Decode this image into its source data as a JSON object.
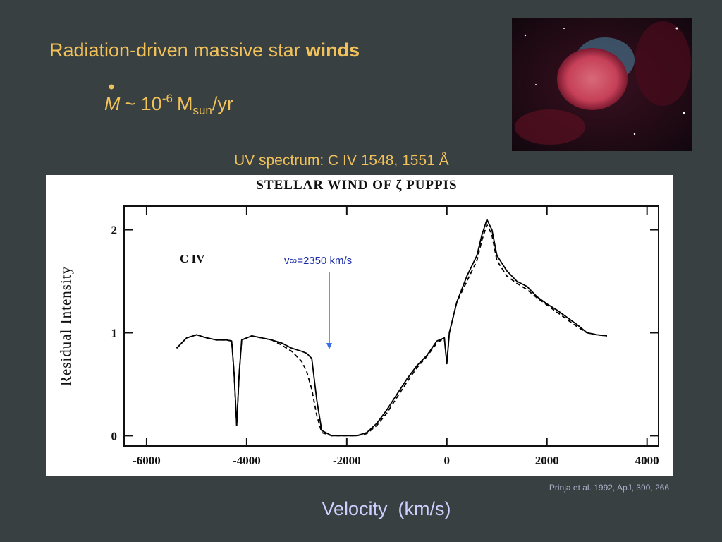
{
  "slide": {
    "title": "Radiation-driven massive star",
    "title_bold": "winds",
    "formula": {
      "symbol": "M",
      "approx": "~ 10",
      "exponent": "-6",
      "unit": "M",
      "unit_sub": "sun",
      "tail": "/yr"
    },
    "subtitle": "UV spectrum: C IV 1548, 1551 Å",
    "citation": "Prinja et al. 1992, ApJ, 390, 266",
    "caption": "Velocity  (km/s)"
  },
  "chart_data": {
    "type": "line",
    "title": "STELLAR WIND OF ζ PUPPIS",
    "y_label": "Residual Intensity",
    "annotations": [
      "C IV",
      "v∞=2350 km/s"
    ],
    "x": [
      -5400,
      -5200,
      -5000,
      -4800,
      -4600,
      -4400,
      -4300,
      -4250,
      -4200,
      -4150,
      -4100,
      -3900,
      -3700,
      -3500,
      -3300,
      -3100,
      -2900,
      -2800,
      -2700,
      -2600,
      -2500,
      -2300,
      -2000,
      -1800,
      -1600,
      -1400,
      -1200,
      -1000,
      -800,
      -600,
      -400,
      -200,
      -50,
      0,
      50,
      200,
      400,
      600,
      700,
      800,
      900,
      1000,
      1200,
      1400,
      1600,
      1800,
      2000,
      2200,
      2400,
      2600,
      2800,
      3000,
      3200
    ],
    "series": [
      {
        "name": "solid",
        "color": "#000000",
        "dash": false,
        "values": [
          0.85,
          0.95,
          0.98,
          0.95,
          0.93,
          0.93,
          0.92,
          0.6,
          0.1,
          0.6,
          0.93,
          0.97,
          0.95,
          0.93,
          0.9,
          0.85,
          0.82,
          0.8,
          0.75,
          0.35,
          0.05,
          0.0,
          0.0,
          0.0,
          0.03,
          0.12,
          0.25,
          0.4,
          0.55,
          0.68,
          0.78,
          0.92,
          0.95,
          0.7,
          1.0,
          1.3,
          1.55,
          1.75,
          1.95,
          2.1,
          2.0,
          1.75,
          1.6,
          1.5,
          1.45,
          1.35,
          1.28,
          1.22,
          1.15,
          1.08,
          1.0,
          0.98,
          0.97
        ]
      },
      {
        "name": "dashed",
        "color": "#000000",
        "dash": true,
        "values": [
          0.85,
          0.95,
          0.98,
          0.95,
          0.93,
          0.93,
          0.92,
          0.6,
          0.1,
          0.6,
          0.93,
          0.97,
          0.95,
          0.93,
          0.88,
          0.82,
          0.72,
          0.62,
          0.45,
          0.2,
          0.03,
          0.0,
          0.0,
          0.0,
          0.02,
          0.1,
          0.22,
          0.37,
          0.52,
          0.66,
          0.77,
          0.9,
          0.95,
          0.7,
          1.0,
          1.3,
          1.5,
          1.7,
          1.9,
          2.05,
          1.95,
          1.7,
          1.55,
          1.48,
          1.42,
          1.34,
          1.27,
          1.2,
          1.13,
          1.06,
          1.0,
          0.98,
          0.97
        ]
      }
    ],
    "xlim": [
      -6450,
      4230
    ],
    "ylim": [
      -0.1,
      2.23
    ],
    "xticks": [
      -6000,
      -4000,
      -2000,
      0,
      2000,
      4000
    ],
    "yticks": [
      0,
      1,
      2
    ],
    "arrow_x": -2350
  }
}
